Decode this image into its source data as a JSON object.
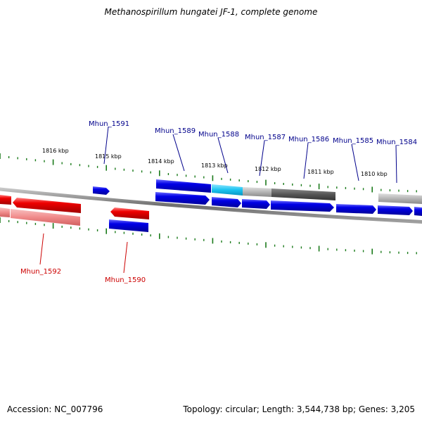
{
  "title": "Methanospirillum hungatei JF-1, complete genome",
  "accession_text": "Accession: NC_007796",
  "summary_text": "Topology: circular; Length: 3,544,738 bp; Genes: 3,205",
  "tick_labels": [
    "1816 kbp",
    "1815 kbp",
    "1814 kbp",
    "1813 kbp",
    "1812 kbp",
    "1811 kbp",
    "1810 kbp"
  ],
  "gene_labels_top": [
    "Mhun_1591",
    "Mhun_1589",
    "Mhun_1588",
    "Mhun_1587",
    "Mhun_1586",
    "Mhun_1585",
    "Mhun_1584"
  ],
  "gene_labels_bottom": [
    "Mhun_1592",
    "Mhun_1590"
  ],
  "colors": {
    "backbone": "#7a7a7a",
    "tick": "#1a7a1a",
    "forward_gene": "#0000e6",
    "reverse_gene": "#e60000",
    "reverse_gene_pale": "#f08a8a",
    "cyan_feature": "#19c3f0",
    "gray_feature": "#b4b4b4",
    "dark_feature": "#505050",
    "label_blue": "#00008b",
    "label_red": "#cc0000"
  }
}
